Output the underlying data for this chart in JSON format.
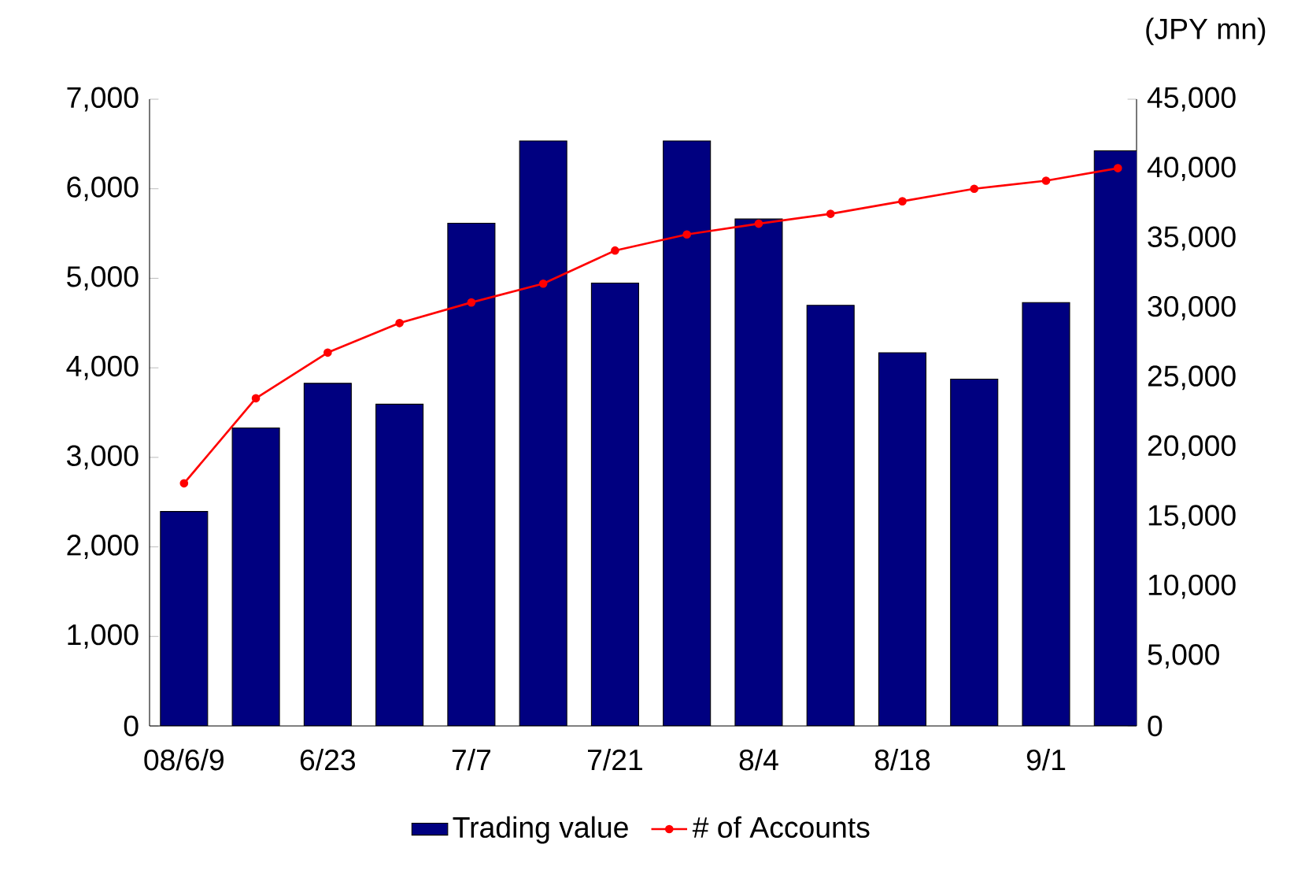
{
  "chart_data": {
    "type": "bar",
    "y2label": "(JPY mn)",
    "categories": [
      "08/6/9",
      null,
      "6/23",
      null,
      "7/7",
      null,
      "7/21",
      null,
      "8/4",
      null,
      "8/18",
      null,
      "9/1",
      null
    ],
    "series": [
      {
        "name": "Trading value",
        "axis": "y2",
        "color": "#000080",
        "values": [
          15400,
          21400,
          24600,
          23100,
          36100,
          42000,
          31800,
          42000,
          36400,
          30200,
          26800,
          24900,
          30400,
          41300
        ]
      },
      {
        "name": "# of Accounts",
        "type": "line",
        "color": "#ff0000",
        "marker": "circle",
        "values": [
          2710,
          3660,
          4170,
          4500,
          4730,
          4940,
          5310,
          5490,
          5610,
          5720,
          5860,
          6000,
          6090,
          6230
        ]
      }
    ],
    "ylim": [
      0,
      7000
    ],
    "yticks": [
      0,
      {
        "value": 1000,
        "label": "1,000"
      },
      {
        "value": 2000,
        "label": "2,000"
      },
      {
        "value": 3000,
        "label": "3,000"
      },
      {
        "value": 4000,
        "label": "4,000"
      },
      {
        "value": 5000,
        "label": "5,000"
      },
      {
        "value": 6000,
        "label": "6,000"
      },
      {
        "value": 7000,
        "label": "7,000"
      }
    ],
    "y2lim": [
      0,
      45000
    ],
    "y2ticks": [
      0,
      {
        "value": 5000,
        "label": "5,000"
      },
      {
        "value": 10000,
        "label": "10,000"
      },
      {
        "value": 15000,
        "label": "15,000"
      },
      {
        "value": 20000,
        "label": "20,000"
      },
      {
        "value": 25000,
        "label": "25,000"
      },
      {
        "value": 30000,
        "label": "30,000"
      },
      {
        "value": 35000,
        "label": "35,000"
      },
      {
        "value": 40000,
        "label": "40,000"
      },
      {
        "value": 45000,
        "label": "45,000"
      }
    ],
    "legend": "bottom",
    "grid": false
  }
}
